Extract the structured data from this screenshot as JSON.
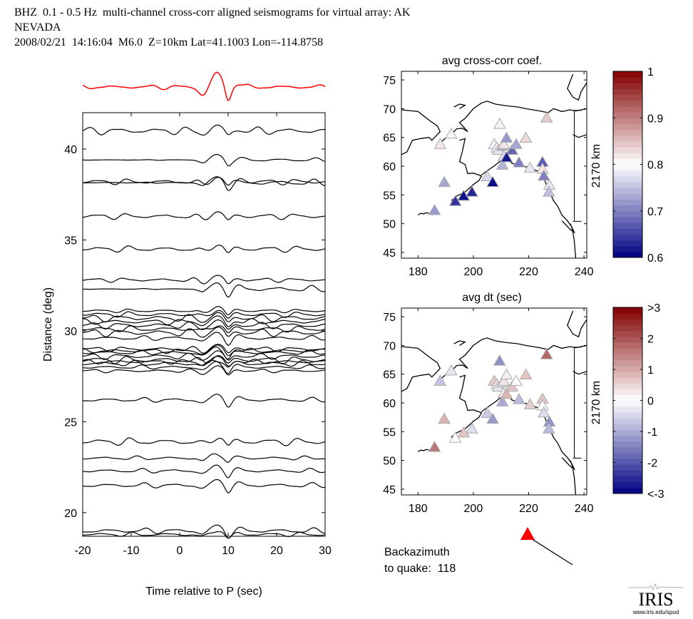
{
  "header": {
    "line1": "BHZ  0.1 - 0.5 Hz  multi-channel cross-corr aligned seismograms for virtual array: AK",
    "line2": "NEVADA",
    "line3": "2008/02/21  14:16:04  M6.0  Z=10km Lat=41.1003 Lon=-114.8758"
  },
  "backazimuth": {
    "label_line1": "Backazimuth",
    "label_line2": "to quake:  118",
    "value": 118
  },
  "logo": {
    "name": "IRIS",
    "url_text": "www.iris.edu/spud"
  },
  "colors": {
    "stack_trace": "#ff0000",
    "trace": "#000000",
    "arrow": "#ff0000"
  },
  "chart_data": [
    {
      "type": "line",
      "title": "multi-channel cross-corr aligned seismograms",
      "xlabel": "Time relative to P (sec)",
      "ylabel": "Distance (deg)",
      "xlim": [
        -20,
        30
      ],
      "ylim": [
        18.7,
        42.0
      ],
      "xticks": [
        -20,
        -10,
        0,
        10,
        20,
        30
      ],
      "yticks": [
        20,
        25,
        30,
        35,
        40
      ],
      "stack_trace": {
        "name": "stacked beam",
        "color": "#ff0000",
        "arrival_time": 8
      },
      "trace_distances": [
        41.0,
        39.4,
        38.2,
        38.15,
        36.3,
        34.5,
        32.8,
        32.3,
        31.1,
        30.9,
        30.7,
        30.5,
        30.3,
        30.1,
        29.9,
        29.6,
        29.0,
        28.9,
        28.8,
        28.6,
        28.4,
        28.3,
        28.2,
        28.0,
        27.8,
        26.2,
        23.9,
        23.0,
        22.3,
        21.5,
        19.0,
        18.8
      ],
      "arrival_time": 8
    },
    {
      "type": "scatter",
      "title": "avg cross-corr coef.",
      "xlabel": "",
      "xlim": [
        174,
        241
      ],
      "ylim": [
        44,
        76.5
      ],
      "xticks": [
        180,
        200,
        220,
        240
      ],
      "yticks": [
        45,
        50,
        55,
        60,
        65,
        70,
        75
      ],
      "scale_bar": "2170 km",
      "colorbar": {
        "min": 0.6,
        "max": 1.0,
        "ticks": [
          "1",
          "0.9",
          "0.8",
          "0.7",
          "0.6"
        ]
      },
      "stations": [
        {
          "lon": 186,
          "lat": 52.3,
          "v": 0.72
        },
        {
          "lon": 188,
          "lat": 63.8,
          "v": 0.82
        },
        {
          "lon": 189.5,
          "lat": 57.2,
          "v": 0.73
        },
        {
          "lon": 192,
          "lat": 65.6,
          "v": 0.79
        },
        {
          "lon": 193.5,
          "lat": 53.9,
          "v": 0.64
        },
        {
          "lon": 196.5,
          "lat": 54.8,
          "v": 0.61
        },
        {
          "lon": 199.5,
          "lat": 55.5,
          "v": 0.63
        },
        {
          "lon": 205,
          "lat": 58.2,
          "v": 0.77
        },
        {
          "lon": 207,
          "lat": 57.2,
          "v": 0.61
        },
        {
          "lon": 209.5,
          "lat": 67.3,
          "v": 0.79
        },
        {
          "lon": 207.5,
          "lat": 63.8,
          "v": 0.79
        },
        {
          "lon": 208.5,
          "lat": 63.2,
          "v": 0.79
        },
        {
          "lon": 209,
          "lat": 62.8,
          "v": 0.78
        },
        {
          "lon": 210.5,
          "lat": 63.5,
          "v": 0.73
        },
        {
          "lon": 211,
          "lat": 63.8,
          "v": 0.82
        },
        {
          "lon": 212,
          "lat": 64.9,
          "v": 0.72
        },
        {
          "lon": 214,
          "lat": 62.8,
          "v": 0.68
        },
        {
          "lon": 215.5,
          "lat": 63.8,
          "v": 0.73
        },
        {
          "lon": 211,
          "lat": 61.7,
          "v": 0.77
        },
        {
          "lon": 210.5,
          "lat": 60.2,
          "v": 0.74
        },
        {
          "lon": 212,
          "lat": 61.5,
          "v": 0.62
        },
        {
          "lon": 216.5,
          "lat": 60.6,
          "v": 0.7
        },
        {
          "lon": 219,
          "lat": 64.9,
          "v": 0.83
        },
        {
          "lon": 220.5,
          "lat": 59.7,
          "v": 0.78
        },
        {
          "lon": 225,
          "lat": 60.7,
          "v": 0.67
        },
        {
          "lon": 225,
          "lat": 59.5,
          "v": 0.82
        },
        {
          "lon": 225.5,
          "lat": 58.3,
          "v": 0.7
        },
        {
          "lon": 227.5,
          "lat": 56.7,
          "v": 0.78
        },
        {
          "lon": 227.3,
          "lat": 55.5,
          "v": 0.75
        },
        {
          "lon": 226.5,
          "lat": 68.4,
          "v": 0.84
        }
      ]
    },
    {
      "type": "scatter",
      "title": "avg dt (sec)",
      "xlabel": "",
      "xlim": [
        174,
        241
      ],
      "ylim": [
        44,
        76.5
      ],
      "xticks": [
        180,
        200,
        220,
        240
      ],
      "yticks": [
        45,
        50,
        55,
        60,
        65,
        70,
        75
      ],
      "scale_bar": "2170 km",
      "colorbar": {
        "min": -3,
        "max": 3,
        "ticks": [
          ">3",
          "2",
          "1",
          "0",
          "-1",
          "-2",
          "<-3"
        ]
      },
      "stations": [
        {
          "lon": 186,
          "lat": 52.3,
          "v": 1.6
        },
        {
          "lon": 188,
          "lat": 63.8,
          "v": -0.7
        },
        {
          "lon": 189.5,
          "lat": 57.2,
          "v": 0.9
        },
        {
          "lon": 192,
          "lat": 65.6,
          "v": -0.3
        },
        {
          "lon": 193.5,
          "lat": 53.9,
          "v": 0.0
        },
        {
          "lon": 196.5,
          "lat": 54.8,
          "v": 0.7
        },
        {
          "lon": 199.5,
          "lat": 55.5,
          "v": -0.4
        },
        {
          "lon": 205,
          "lat": 58.2,
          "v": -0.6
        },
        {
          "lon": 207,
          "lat": 57.2,
          "v": -1.2
        },
        {
          "lon": 209.5,
          "lat": 67.3,
          "v": -1.3
        },
        {
          "lon": 207.5,
          "lat": 63.8,
          "v": 0.6
        },
        {
          "lon": 208.5,
          "lat": 63.2,
          "v": 0.3
        },
        {
          "lon": 209,
          "lat": 62.8,
          "v": -0.3
        },
        {
          "lon": 210.5,
          "lat": 63.5,
          "v": -0.4
        },
        {
          "lon": 211,
          "lat": 63.8,
          "v": 0.3
        },
        {
          "lon": 212,
          "lat": 64.9,
          "v": 0.2
        },
        {
          "lon": 214,
          "lat": 62.8,
          "v": 0.7
        },
        {
          "lon": 215.5,
          "lat": 63.8,
          "v": 0.0
        },
        {
          "lon": 211,
          "lat": 61.7,
          "v": 0.3
        },
        {
          "lon": 210.5,
          "lat": 60.2,
          "v": -1.0
        },
        {
          "lon": 212,
          "lat": 61.5,
          "v": 0.9
        },
        {
          "lon": 216.5,
          "lat": 60.6,
          "v": -0.8
        },
        {
          "lon": 219,
          "lat": 64.9,
          "v": 0.7
        },
        {
          "lon": 220.5,
          "lat": 59.7,
          "v": 0.6
        },
        {
          "lon": 225,
          "lat": 60.7,
          "v": 0.7
        },
        {
          "lon": 225,
          "lat": 59.5,
          "v": 0.0
        },
        {
          "lon": 225.5,
          "lat": 58.3,
          "v": -0.4
        },
        {
          "lon": 227.5,
          "lat": 56.7,
          "v": -1.3
        },
        {
          "lon": 227.3,
          "lat": 55.5,
          "v": -0.8
        },
        {
          "lon": 226.5,
          "lat": 68.4,
          "v": 1.8
        }
      ]
    }
  ]
}
